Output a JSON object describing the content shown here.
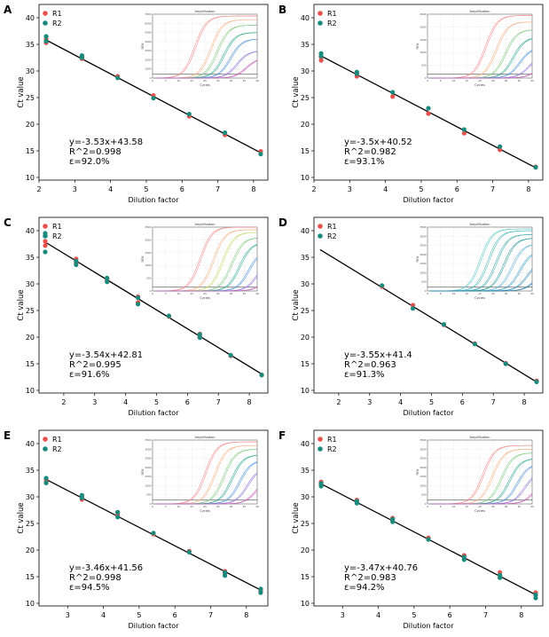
{
  "figure": {
    "background": "#ffffff"
  },
  "colors": {
    "r1": "#e8504e",
    "r2": "#1a8a7c",
    "fit": "#000000",
    "frame": "#000000"
  },
  "common": {
    "xlabel": "Dilution factor",
    "ylabel": "Ct value",
    "legend": [
      "R1",
      "R2"
    ],
    "inset_title": "Amplification",
    "inset_xlabel": "Cycles",
    "inset_ylabel": "RFU"
  },
  "chart_data": [
    {
      "type": "scatter",
      "panel_label": "A",
      "xlim": [
        2.0,
        8.4
      ],
      "ylim": [
        9.5,
        42.5
      ],
      "xticks": [
        2,
        3,
        4,
        5,
        6,
        7,
        8
      ],
      "yticks": [
        10,
        15,
        20,
        25,
        30,
        35,
        40
      ],
      "series": [
        {
          "name": "R1",
          "x": [
            2.2,
            2.2,
            3.2,
            3.2,
            4.2,
            5.2,
            6.2,
            7.2,
            8.2
          ],
          "y": [
            35.3,
            36.0,
            32.3,
            32.7,
            29.0,
            25.4,
            21.5,
            18.0,
            14.9
          ]
        },
        {
          "name": "R2",
          "x": [
            2.2,
            2.2,
            3.2,
            3.2,
            4.2,
            5.2,
            6.2,
            7.2,
            8.2
          ],
          "y": [
            35.6,
            36.5,
            32.5,
            32.9,
            28.7,
            24.9,
            21.9,
            18.4,
            14.4
          ]
        }
      ],
      "fit": {
        "slope": -3.53,
        "intercept": 43.58,
        "x": [
          2.2,
          8.2
        ]
      },
      "annotation": [
        "y=-3.53x+43.58",
        "R^2=0.998",
        "ε=92.0%"
      ],
      "inset": {
        "ymax": 7000,
        "yticks": [
          0,
          1000,
          2000,
          3000,
          4000,
          5000,
          6000,
          7000
        ],
        "xticks": [
          0,
          5,
          10,
          15,
          20,
          25,
          30,
          35,
          40
        ],
        "thresholds": [
          10,
          16,
          18.5,
          21,
          23.5,
          26,
          29.5
        ],
        "plateau": [
          6800,
          6400,
          5800,
          5000,
          4300,
          3000,
          2200
        ],
        "colors": [
          "#f28a8a",
          "#f6b38a",
          "#7fc97f",
          "#2ca58d",
          "#4a90d9",
          "#8e6fd8",
          "#c45ab3"
        ]
      }
    },
    {
      "type": "scatter",
      "panel_label": "B",
      "xlim": [
        2.0,
        8.4
      ],
      "ylim": [
        9.5,
        42.5
      ],
      "xticks": [
        2,
        3,
        4,
        5,
        6,
        7,
        8
      ],
      "yticks": [
        10,
        15,
        20,
        25,
        30,
        35,
        40
      ],
      "series": [
        {
          "name": "R1",
          "x": [
            2.2,
            2.2,
            3.2,
            3.2,
            4.2,
            5.2,
            6.2,
            7.2,
            8.2
          ],
          "y": [
            32.0,
            32.6,
            29.0,
            29.5,
            25.2,
            22.0,
            18.3,
            15.2,
            12.0
          ]
        },
        {
          "name": "R2",
          "x": [
            2.2,
            2.2,
            3.2,
            3.2,
            4.2,
            5.2,
            6.2,
            7.2,
            8.2
          ],
          "y": [
            32.8,
            33.3,
            29.5,
            29.8,
            26.0,
            23.0,
            19.0,
            15.8,
            11.9
          ]
        }
      ],
      "fit": {
        "slope": -3.5,
        "intercept": 40.52,
        "x": [
          2.2,
          8.2
        ]
      },
      "annotation": [
        "y=-3.5x+40.52",
        "R^2=0.982",
        "ε=93.1%"
      ],
      "inset": {
        "ymax": 2500,
        "yticks": [
          0,
          500,
          1000,
          1500,
          2000,
          2500
        ],
        "xticks": [
          0,
          5,
          10,
          15,
          20,
          25,
          30,
          35,
          40
        ],
        "thresholds": [
          16,
          20,
          23.5,
          26.5,
          29,
          32.5,
          35
        ],
        "plateau": [
          2450,
          2200,
          1900,
          1600,
          1200,
          900,
          500
        ],
        "colors": [
          "#f28a8a",
          "#f6b38a",
          "#7fc97f",
          "#2ca58d",
          "#4a90d9",
          "#8e6fd8",
          "#c45ab3"
        ]
      }
    },
    {
      "type": "scatter",
      "panel_label": "C",
      "xlim": [
        1.2,
        8.6
      ],
      "ylim": [
        9.5,
        42.5
      ],
      "xticks": [
        2,
        3,
        4,
        5,
        6,
        7,
        8
      ],
      "yticks": [
        10,
        15,
        20,
        25,
        30,
        35,
        40
      ],
      "series": [
        {
          "name": "R1",
          "x": [
            1.4,
            1.4,
            2.4,
            2.4,
            3.4,
            3.4,
            4.4,
            4.4,
            5.4,
            6.4,
            6.4,
            7.4,
            8.4
          ],
          "y": [
            37.2,
            38.0,
            34.0,
            34.7,
            30.7,
            31.0,
            27.6,
            26.5,
            23.9,
            20.1,
            20.6,
            16.5,
            12.9
          ]
        },
        {
          "name": "R2",
          "x": [
            1.4,
            1.4,
            2.4,
            2.4,
            3.4,
            3.4,
            4.4,
            4.4,
            5.4,
            6.4,
            6.4,
            7.4,
            8.4
          ],
          "y": [
            36.0,
            39.5,
            33.6,
            34.3,
            30.4,
            31.1,
            27.4,
            26.2,
            24.0,
            19.9,
            20.5,
            16.6,
            12.9
          ]
        }
      ],
      "fit": {
        "slope": -3.54,
        "intercept": 42.81,
        "x": [
          1.4,
          8.4
        ]
      },
      "annotation": [
        "y=-3.54x+42.81",
        "R^2=0.995",
        "ε=91.6%"
      ],
      "inset": {
        "ymax": 2500,
        "yticks": [
          0,
          500,
          1000,
          1500,
          2000,
          2500
        ],
        "xticks": [
          0,
          5,
          10,
          15,
          20,
          25,
          30,
          35,
          40
        ],
        "thresholds": [
          12,
          17,
          20.5,
          24,
          27,
          30.5,
          34,
          37
        ],
        "plateau": [
          2500,
          2400,
          2300,
          2100,
          1900,
          1600,
          1300,
          900
        ],
        "colors": [
          "#f28a8a",
          "#f6b38a",
          "#c9d86b",
          "#7fc97f",
          "#2ca58d",
          "#4a90d9",
          "#8e6fd8",
          "#c45ab3"
        ]
      }
    },
    {
      "type": "scatter",
      "panel_label": "D",
      "xlim": [
        1.2,
        8.6
      ],
      "ylim": [
        9.5,
        42.5
      ],
      "xticks": [
        2,
        3,
        4,
        5,
        6,
        7,
        8
      ],
      "yticks": [
        10,
        15,
        20,
        25,
        30,
        35,
        40
      ],
      "series": [
        {
          "name": "R1",
          "x": [
            3.4,
            4.4,
            5.4,
            6.4,
            7.4,
            8.4
          ],
          "y": [
            29.5,
            26.0,
            22.3,
            18.8,
            15.1,
            11.8
          ]
        },
        {
          "name": "R2",
          "x": [
            3.4,
            4.4,
            5.4,
            6.4,
            7.4,
            8.4
          ],
          "y": [
            29.7,
            25.4,
            22.4,
            18.7,
            15.0,
            11.6
          ]
        }
      ],
      "fit": {
        "slope": -3.55,
        "intercept": 41.4,
        "x": [
          1.4,
          8.4
        ]
      },
      "annotation": [
        "y=-3.55x+41.4",
        "R^2=0.963",
        "ε=91.3%"
      ],
      "inset": {
        "ymax": 3500,
        "yticks": [
          0,
          500,
          1000,
          1500,
          2000,
          2500,
          3000,
          3500
        ],
        "xticks": [
          0,
          5,
          10,
          15,
          20,
          25,
          30,
          35,
          40
        ],
        "thresholds": [
          14,
          17,
          20,
          23,
          26,
          29,
          32,
          35
        ],
        "plateau": [
          3400,
          3300,
          3100,
          2900,
          2600,
          2200,
          1700,
          1200
        ],
        "colors": [
          "#5fc6c6",
          "#48b6b6",
          "#39a7a7",
          "#2e9898",
          "#5fb3d9",
          "#3f9fcc",
          "#2e8bb8",
          "#1f7aa3"
        ]
      }
    },
    {
      "type": "scatter",
      "panel_label": "E",
      "xlim": [
        2.2,
        8.6
      ],
      "ylim": [
        9.5,
        42.5
      ],
      "xticks": [
        3,
        4,
        5,
        6,
        7,
        8
      ],
      "yticks": [
        10,
        15,
        20,
        25,
        30,
        35,
        40
      ],
      "series": [
        {
          "name": "R1",
          "x": [
            2.4,
            2.4,
            3.4,
            3.4,
            4.4,
            4.4,
            5.4,
            6.4,
            7.4,
            7.4,
            8.4,
            8.4
          ],
          "y": [
            32.8,
            33.3,
            29.5,
            30.1,
            26.5,
            27.0,
            23.0,
            19.8,
            16.0,
            15.5,
            12.5,
            12.2
          ]
        },
        {
          "name": "R2",
          "x": [
            2.4,
            2.4,
            3.4,
            3.4,
            4.4,
            4.4,
            5.4,
            6.4,
            7.4,
            7.4,
            8.4,
            8.4
          ],
          "y": [
            32.6,
            33.5,
            29.8,
            30.3,
            26.2,
            27.1,
            23.2,
            19.6,
            15.2,
            15.8,
            12.0,
            12.7
          ]
        }
      ],
      "fit": {
        "slope": -3.46,
        "intercept": 41.56,
        "x": [
          2.4,
          8.4
        ]
      },
      "annotation": [
        "y=-3.46x+41.56",
        "R^2=0.998",
        "ε=94.5%"
      ],
      "inset": {
        "ymax": 3500,
        "yticks": [
          0,
          500,
          1000,
          1500,
          2000,
          2500,
          3000,
          3500
        ],
        "xticks": [
          0,
          5,
          10,
          15,
          20,
          25,
          30,
          35,
          40
        ],
        "thresholds": [
          14,
          17.5,
          21,
          24,
          27,
          30,
          33.5
        ],
        "plateau": [
          3400,
          3200,
          3000,
          2700,
          2400,
          2000,
          1500
        ],
        "colors": [
          "#f28a8a",
          "#f6b38a",
          "#7fc97f",
          "#2ca58d",
          "#4a90d9",
          "#8e6fd8",
          "#c45ab3"
        ]
      }
    },
    {
      "type": "scatter",
      "panel_label": "F",
      "xlim": [
        2.2,
        8.6
      ],
      "ylim": [
        9.5,
        42.5
      ],
      "xticks": [
        3,
        4,
        5,
        6,
        7,
        8
      ],
      "yticks": [
        10,
        15,
        20,
        25,
        30,
        35,
        40
      ],
      "series": [
        {
          "name": "R1",
          "x": [
            2.4,
            2.4,
            3.4,
            3.4,
            4.4,
            4.4,
            5.4,
            6.4,
            6.4,
            7.4,
            7.4,
            8.4,
            8.4
          ],
          "y": [
            32.3,
            32.8,
            29.0,
            29.4,
            25.5,
            26.0,
            22.3,
            18.5,
            19.0,
            15.2,
            15.8,
            11.5,
            12.0
          ]
        },
        {
          "name": "R2",
          "x": [
            2.4,
            2.4,
            3.4,
            3.4,
            4.4,
            4.4,
            5.4,
            6.4,
            6.4,
            7.4,
            7.4,
            8.4,
            8.4
          ],
          "y": [
            32.0,
            32.5,
            28.8,
            29.2,
            25.3,
            25.8,
            22.0,
            18.2,
            18.7,
            14.8,
            15.3,
            11.0,
            11.6
          ]
        }
      ],
      "fit": {
        "slope": -3.47,
        "intercept": 40.76,
        "x": [
          2.4,
          8.4
        ]
      },
      "annotation": [
        "y=-3.47x+40.76",
        "R^2=0.983",
        "ε=94.2%"
      ],
      "inset": {
        "ymax": 3500,
        "yticks": [
          0,
          500,
          1000,
          1500,
          2000,
          2500,
          3000,
          3500
        ],
        "xticks": [
          0,
          5,
          10,
          15,
          20,
          25,
          30,
          35,
          40
        ],
        "thresholds": [
          15,
          18.5,
          22,
          25,
          28,
          31,
          34.5
        ],
        "plateau": [
          3200,
          3000,
          2800,
          2500,
          2200,
          1800,
          1300
        ],
        "colors": [
          "#f28a8a",
          "#f6b38a",
          "#7fc97f",
          "#2ca58d",
          "#4a90d9",
          "#8e6fd8",
          "#c45ab3"
        ]
      }
    }
  ]
}
